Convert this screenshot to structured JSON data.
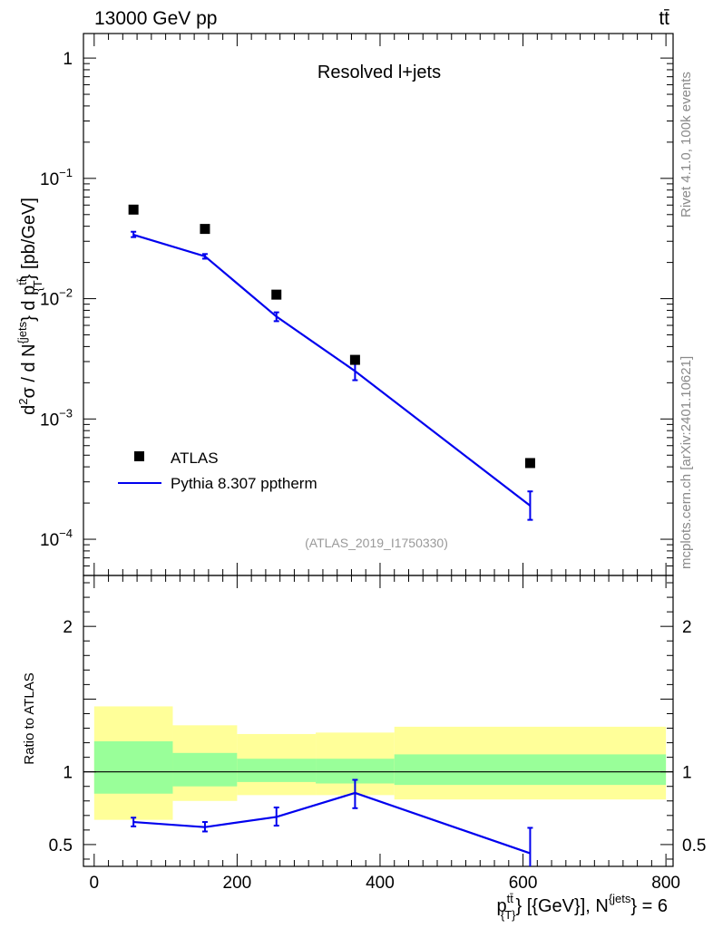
{
  "header": {
    "energy_label": "13000 GeV pp",
    "process_label": "tt̄",
    "plot_title": "Resolved l+jets",
    "analysis_id": "(ATLAS_2019_I1750330)"
  },
  "side_text": {
    "rivet": "Rivet 4.1.0,  100k events",
    "mcplots": "mcplots.cern.ch [arXiv:2401.10621]"
  },
  "colors": {
    "mc_line": "#0000ee",
    "data_marker": "#000000",
    "band_outer": "#ffff99",
    "band_inner": "#99ff99"
  },
  "chart_data": [
    {
      "type": "scatter+line",
      "panel": "main",
      "title": "Resolved l+jets",
      "ylabel": "d²σ / d N^{jets} d p_{T}^{tt̄} [pb/GeV]",
      "yscale": "log",
      "ylim": [
        5e-05,
        1.6
      ],
      "xlim": [
        -15,
        810
      ],
      "y_ticks": [
        {
          "value": 1,
          "label": "1"
        },
        {
          "value": 0.1,
          "label": "10",
          "exp": "−1"
        },
        {
          "value": 0.01,
          "label": "10",
          "exp": "−2"
        },
        {
          "value": 0.001,
          "label": "10",
          "exp": "−3"
        },
        {
          "value": 0.0001,
          "label": "10",
          "exp": "−4"
        }
      ],
      "legend_position": "bottom-left",
      "series": [
        {
          "name": "ATLAS",
          "kind": "markers",
          "x": [
            55,
            155,
            255,
            365,
            610
          ],
          "y": [
            0.055,
            0.038,
            0.0108,
            0.0031,
            0.00043
          ]
        },
        {
          "name": "Pythia 8.307 pptherm",
          "kind": "line",
          "x": [
            55,
            155,
            255,
            365,
            610
          ],
          "y": [
            0.034,
            0.0225,
            0.0071,
            0.0025,
            0.00019
          ],
          "err_up": [
            0.036,
            0.0235,
            0.0077,
            0.003,
            0.00025
          ],
          "err_down": [
            0.0325,
            0.0215,
            0.0065,
            0.0021,
            0.000145
          ]
        }
      ]
    },
    {
      "type": "ratio",
      "panel": "ratio",
      "ylabel": "Ratio to ATLAS",
      "xlabel_main": "p",
      "xlabel_sup": "tt̄",
      "xlabel_sub": "{T}",
      "xlabel_rest": "} [{GeV}], N",
      "xlabel_sup2": "{jets",
      "xlabel_end": "} = 6",
      "ylim": [
        0.35,
        2.35
      ],
      "xlim": [
        -15,
        810
      ],
      "x_ticks": [
        0,
        200,
        400,
        600,
        800
      ],
      "y_ticks": [
        0.5,
        1,
        2
      ],
      "reference": 1,
      "bins": [
        {
          "lo": 0,
          "hi": 110,
          "outer": [
            0.67,
            1.45
          ],
          "inner": [
            0.85,
            1.21
          ]
        },
        {
          "lo": 110,
          "hi": 200,
          "outer": [
            0.8,
            1.32
          ],
          "inner": [
            0.9,
            1.13
          ]
        },
        {
          "lo": 200,
          "hi": 310,
          "outer": [
            0.84,
            1.26
          ],
          "inner": [
            0.93,
            1.09
          ]
        },
        {
          "lo": 310,
          "hi": 420,
          "outer": [
            0.84,
            1.27
          ],
          "inner": [
            0.92,
            1.09
          ]
        },
        {
          "lo": 420,
          "hi": 800,
          "outer": [
            0.81,
            1.31
          ],
          "inner": [
            0.91,
            1.12
          ]
        }
      ],
      "series": [
        {
          "name": "Pythia 8.307 pptherm",
          "x": [
            55,
            155,
            255,
            365,
            610
          ],
          "y": [
            0.655,
            0.62,
            0.69,
            0.855,
            0.44
          ],
          "err_up": [
            0.685,
            0.655,
            0.755,
            0.945,
            0.615
          ],
          "err_down": [
            0.625,
            0.59,
            0.63,
            0.75,
            0.35
          ]
        }
      ]
    }
  ]
}
